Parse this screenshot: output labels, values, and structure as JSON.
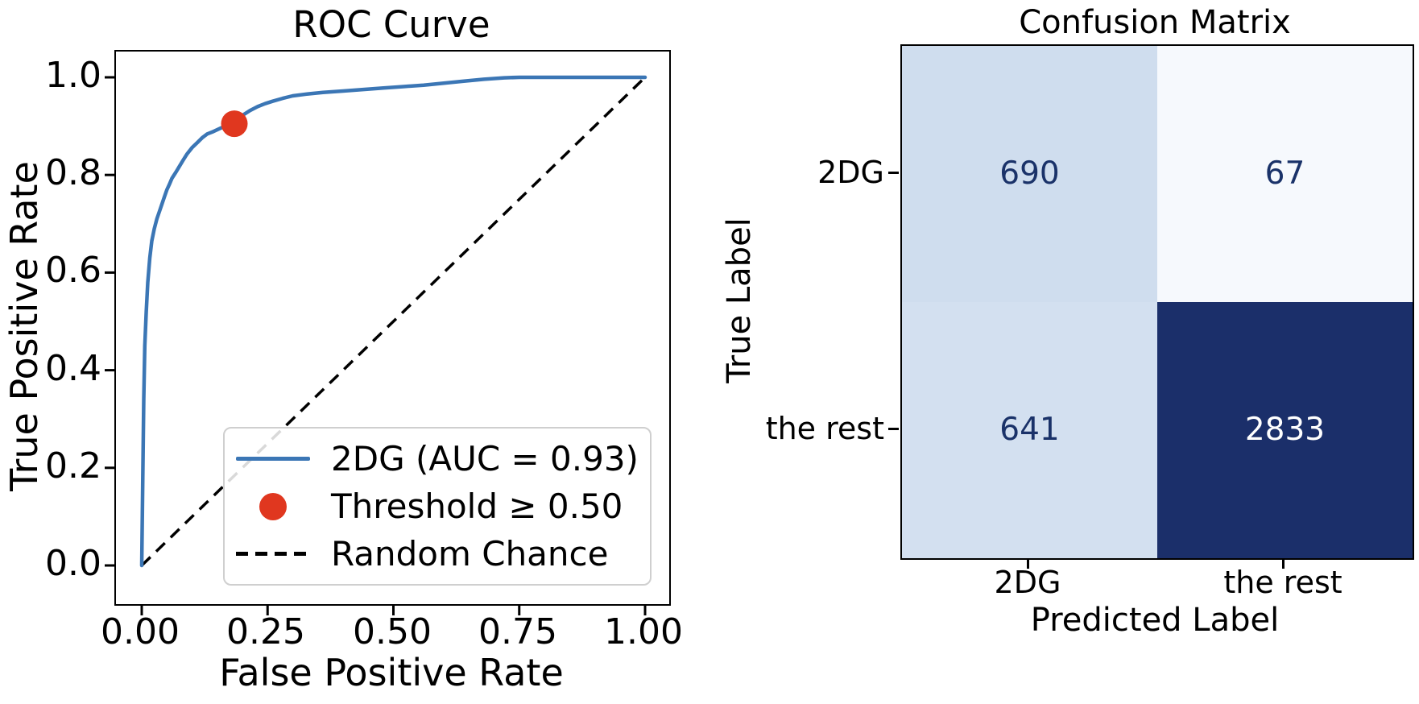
{
  "figure": {
    "background": "#ffffff"
  },
  "chart_data": [
    {
      "type": "line",
      "title": "ROC Curve",
      "xlabel": "False Positive Rate",
      "ylabel": "True Positive Rate",
      "x_ticks": [
        0.0,
        0.25,
        0.5,
        0.75,
        1.0
      ],
      "x_tick_labels": [
        "0.00",
        "0.25",
        "0.50",
        "0.75",
        "1.00"
      ],
      "y_ticks": [
        1.0,
        0.8,
        0.6,
        0.4,
        0.2,
        0.0
      ],
      "y_tick_labels": [
        "1.0",
        "0.8",
        "0.6",
        "0.4",
        "0.2",
        "0.0"
      ],
      "xlim": [
        -0.05,
        1.05
      ],
      "ylim": [
        -0.1,
        1.06
      ],
      "grid": false,
      "legend_position": "lower right",
      "auc": 0.93,
      "threshold": 0.5,
      "series": [
        {
          "name": "2DG (AUC = 0.93)",
          "style": "solid",
          "color": "#3b76b5",
          "points": [
            [
              0,
              0
            ],
            [
              0.002,
              0.18
            ],
            [
              0.004,
              0.34
            ],
            [
              0.006,
              0.45
            ],
            [
              0.009,
              0.52
            ],
            [
              0.012,
              0.58
            ],
            [
              0.016,
              0.63
            ],
            [
              0.02,
              0.665
            ],
            [
              0.025,
              0.69
            ],
            [
              0.03,
              0.71
            ],
            [
              0.035,
              0.725
            ],
            [
              0.04,
              0.74
            ],
            [
              0.045,
              0.755
            ],
            [
              0.05,
              0.77
            ],
            [
              0.055,
              0.781
            ],
            [
              0.06,
              0.793
            ],
            [
              0.068,
              0.806
            ],
            [
              0.075,
              0.818
            ],
            [
              0.082,
              0.83
            ],
            [
              0.09,
              0.843
            ],
            [
              0.1,
              0.856
            ],
            [
              0.11,
              0.866
            ],
            [
              0.12,
              0.876
            ],
            [
              0.13,
              0.884
            ],
            [
              0.14,
              0.888
            ],
            [
              0.155,
              0.895
            ],
            [
              0.17,
              0.902
            ],
            [
              0.184,
              0.908
            ],
            [
              0.2,
              0.922
            ],
            [
              0.215,
              0.932
            ],
            [
              0.23,
              0.94
            ],
            [
              0.245,
              0.946
            ],
            [
              0.26,
              0.951
            ],
            [
              0.28,
              0.957
            ],
            [
              0.3,
              0.962
            ],
            [
              0.33,
              0.966
            ],
            [
              0.36,
              0.969
            ],
            [
              0.4,
              0.972
            ],
            [
              0.44,
              0.975
            ],
            [
              0.48,
              0.978
            ],
            [
              0.52,
              0.981
            ],
            [
              0.56,
              0.984
            ],
            [
              0.6,
              0.988
            ],
            [
              0.64,
              0.992
            ],
            [
              0.68,
              0.996
            ],
            [
              0.72,
              0.999
            ],
            [
              0.75,
              1.0
            ],
            [
              1.0,
              1.0
            ]
          ]
        },
        {
          "name": "Threshold ≥ 0.50",
          "style": "marker",
          "color": "#e0371f",
          "marker_radius": 16.5,
          "points": [
            [
              0.184,
              0.905
            ]
          ]
        },
        {
          "name": "Random Chance",
          "style": "dashed",
          "color": "#000000",
          "points": [
            [
              0,
              0
            ],
            [
              1,
              1
            ]
          ]
        }
      ]
    },
    {
      "type": "heatmap",
      "title": "Confusion Matrix",
      "xlabel": "Predicted Label",
      "ylabel": "True Label",
      "x_tick_labels": [
        "2DG",
        "the rest"
      ],
      "y_tick_labels": [
        "2DG",
        "the rest"
      ],
      "matrix": [
        [
          690,
          67
        ],
        [
          641,
          2833
        ]
      ],
      "cell_colors": [
        [
          "#cfddee",
          "#f6f9fd"
        ],
        [
          "#d3e0f0",
          "#1b2f6a"
        ]
      ],
      "cell_text_colors": [
        [
          "#1a3269",
          "#1a3269"
        ],
        [
          "#1a3269",
          "#ffffff"
        ]
      ],
      "colormap": "Blues"
    }
  ]
}
